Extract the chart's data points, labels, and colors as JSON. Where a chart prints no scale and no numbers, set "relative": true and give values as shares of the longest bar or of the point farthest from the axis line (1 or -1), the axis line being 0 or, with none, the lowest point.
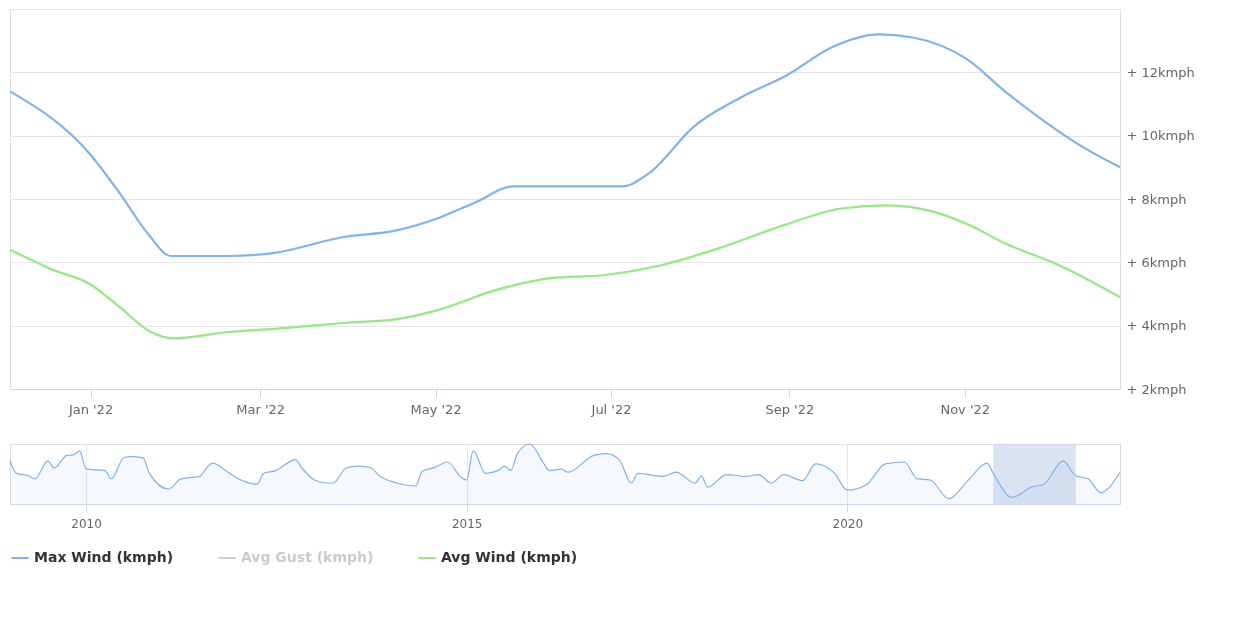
{
  "chart_data": [
    {
      "type": "line",
      "xlim": [
        "2021-12-04",
        "2022-12-25"
      ],
      "ylim": [
        2,
        14
      ],
      "xticks": [
        {
          "value": "2022-01-01",
          "label": "Jan '22"
        },
        {
          "value": "2022-03-01",
          "label": "Mar '22"
        },
        {
          "value": "2022-05-01",
          "label": "May '22"
        },
        {
          "value": "2022-07-01",
          "label": "Jul '22"
        },
        {
          "value": "2022-09-01",
          "label": "Sep '22"
        },
        {
          "value": "2022-11-01",
          "label": "Nov '22"
        }
      ],
      "yticks": [
        {
          "value": 2,
          "label": "+ 2kmph"
        },
        {
          "value": 4,
          "label": "+ 4kmph"
        },
        {
          "value": 6,
          "label": "+ 6kmph"
        },
        {
          "value": 8,
          "label": "+ 8kmph"
        },
        {
          "value": 10,
          "label": "+ 10kmph"
        },
        {
          "value": 12,
          "label": "+ 12kmph"
        },
        {
          "value": 14,
          "label": null
        }
      ],
      "grid": "y",
      "legend": "bottom",
      "series": [
        {
          "name": "Max Wind (kmph)",
          "color": "#7cb5ec",
          "x": [
            "2021-12-04",
            "2022-01-01",
            "2022-01-11",
            "2022-01-21",
            "2022-01-29",
            "2022-02-18",
            "2022-03-06",
            "2022-03-30",
            "2022-04-17",
            "2022-05-02",
            "2022-05-15",
            "2022-05-28",
            "2022-06-10",
            "2022-06-22",
            "2022-07-05",
            "2022-07-14",
            "2022-07-30",
            "2022-08-15",
            "2022-08-31",
            "2022-09-16",
            "2022-10-02",
            "2022-10-14",
            "2022-11-02",
            "2022-11-15",
            "2022-11-28",
            "2022-12-11",
            "2022-12-25"
          ],
          "values": [
            11.4,
            9.4,
            8.2,
            6.9,
            6.2,
            6.2,
            6.3,
            6.8,
            7.0,
            7.4,
            7.9,
            8.4,
            8.4,
            8.4,
            8.4,
            8.8,
            10.3,
            11.2,
            11.9,
            12.8,
            13.2,
            13.1,
            12.4,
            11.4,
            10.5,
            9.7,
            9.0
          ]
        },
        {
          "name": "Avg Gust (kmph)",
          "color": "#cccccc"
        },
        {
          "name": "Avg Wind (kmph)",
          "color": "#90ed7d",
          "x": [
            "2021-12-04",
            "2021-12-18",
            "2022-01-01",
            "2022-01-11",
            "2022-01-22",
            "2022-01-30",
            "2022-02-18",
            "2022-03-06",
            "2022-04-01",
            "2022-04-17",
            "2022-05-02",
            "2022-05-21",
            "2022-06-10",
            "2022-06-29",
            "2022-07-18",
            "2022-08-06",
            "2022-08-31",
            "2022-09-19",
            "2022-10-05",
            "2022-10-21",
            "2022-11-02",
            "2022-11-15",
            "2022-12-04",
            "2022-12-25"
          ],
          "values": [
            6.4,
            5.8,
            5.3,
            4.6,
            3.8,
            3.6,
            3.8,
            3.9,
            4.1,
            4.2,
            4.5,
            5.1,
            5.5,
            5.6,
            5.9,
            6.4,
            7.2,
            7.7,
            7.8,
            7.6,
            7.2,
            6.6,
            5.9,
            4.9
          ]
        }
      ]
    },
    {
      "type": "area",
      "relative": true,
      "xlim": [
        "2009-01",
        "2023-08"
      ],
      "xticks": [
        {
          "value": "2010",
          "label": "2010"
        },
        {
          "value": "2015",
          "label": "2015"
        },
        {
          "value": "2020",
          "label": "2020"
        }
      ],
      "grid": "x",
      "bands": [
        {
          "axis": "x",
          "from": "2021-12",
          "to": "2023-01",
          "color": "#ccd6eb"
        }
      ],
      "series": [
        {
          "color": "#7cb5ec",
          "x": [
            "2009-01",
            "2009-02",
            "2009-04",
            "2009-05",
            "2009-07",
            "2009-08",
            "2009-10",
            "2009-11",
            "2009-12",
            "2010-01",
            "2010-04",
            "2010-05",
            "2010-07",
            "2010-08",
            "2010-10",
            "2010-11",
            "2011-02",
            "2011-04",
            "2011-07",
            "2011-08",
            "2011-09",
            "2011-11",
            "2012-01",
            "2012-04",
            "2012-05",
            "2012-07",
            "2012-08",
            "2012-10",
            "2012-11",
            "2013-01",
            "2013-03",
            "2013-04",
            "2013-06",
            "2013-08",
            "2013-10",
            "2013-11",
            "2014-02",
            "2014-05",
            "2014-06",
            "2014-08",
            "2014-10",
            "2014-12",
            "2015-01",
            "2015-02",
            "2015-04",
            "2015-06",
            "2015-07",
            "2015-08",
            "2015-09",
            "2015-11",
            "2016-01",
            "2016-02",
            "2016-04",
            "2016-05",
            "2016-09",
            "2016-11",
            "2017-01",
            "2017-03",
            "2017-04",
            "2017-08",
            "2017-10",
            "2018-01",
            "2018-02",
            "2018-03",
            "2018-06",
            "2018-09",
            "2018-11",
            "2019-01",
            "2019-03",
            "2019-06",
            "2019-08",
            "2019-09",
            "2019-11",
            "2020-01",
            "2020-04",
            "2020-07",
            "2020-10",
            "2020-12",
            "2021-02",
            "2021-05",
            "2021-08",
            "2021-11",
            "2021-12",
            "2022-03",
            "2022-06",
            "2022-08",
            "2022-11",
            "2023-01",
            "2023-03",
            "2023-05",
            "2023-08"
          ],
          "values": [
            0.72,
            0.51,
            0.47,
            0.42,
            0.72,
            0.6,
            0.81,
            0.82,
            0.88,
            0.58,
            0.56,
            0.42,
            0.77,
            0.79,
            0.77,
            0.51,
            0.25,
            0.42,
            0.46,
            0.6,
            0.68,
            0.56,
            0.42,
            0.33,
            0.51,
            0.56,
            0.63,
            0.74,
            0.6,
            0.4,
            0.35,
            0.35,
            0.6,
            0.63,
            0.6,
            0.49,
            0.35,
            0.3,
            0.54,
            0.61,
            0.7,
            0.46,
            0.4,
            0.89,
            0.51,
            0.56,
            0.63,
            0.56,
            0.84,
            1,
            0.7,
            0.56,
            0.58,
            0.53,
            0.81,
            0.84,
            0.74,
            0.35,
            0.51,
            0.46,
            0.53,
            0.35,
            0.47,
            0.28,
            0.49,
            0.46,
            0.49,
            0.35,
            0.49,
            0.39,
            0.67,
            0.65,
            0.51,
            0.23,
            0.32,
            0.67,
            0.7,
            0.42,
            0.4,
            0.09,
            0.39,
            0.68,
            0.51,
            0.11,
            0.28,
            0.33,
            0.72,
            0.47,
            0.42,
            0.19,
            0.53
          ]
        }
      ]
    }
  ]
}
